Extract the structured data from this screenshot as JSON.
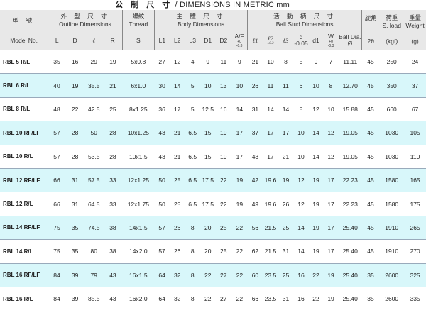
{
  "title": {
    "zh": "公 制 尺 寸",
    "en": "/ DIMENSIONS IN METRIC mm"
  },
  "header": {
    "model_zh": "型 號",
    "model_en": "Model No.",
    "outline_zh": "外 型 尺 寸",
    "outline_en": "Outline Dimensions",
    "thread_zh": "螺紋",
    "thread_en": "Thread",
    "body_zh": "主 體 尺 寸",
    "body_en": "Body Dimensions",
    "stud_zh": "活 動 柄 尺 寸",
    "stud_en": "Ball Stud Dimensions",
    "angle_zh": "旋角",
    "load_zh": "荷重",
    "load_en": "S. load",
    "weight_zh": "重量",
    "weight_en": "Weight",
    "cols": [
      "L",
      "D",
      "ℓ",
      "R",
      "S",
      "L1",
      "L2",
      "L3",
      "D1",
      "D2",
      "A/F",
      "ℓ1",
      "ℓ2",
      "ℓ3",
      "d",
      "d1",
      "W",
      "Ball Dia.",
      "2θ",
      "(kgf)",
      "(g)"
    ],
    "af_tol": [
      "+0",
      "-0.3"
    ],
    "l2_tol": "±0.3",
    "d_tol": "-0.05",
    "w_tol": [
      "+0",
      "-0.3"
    ],
    "ball_sym": "Ø"
  },
  "rows": [
    [
      "RBL 5 R/L",
      "35",
      "16",
      "29",
      "19",
      "5x0.8",
      "27",
      "12",
      "4",
      "9",
      "11",
      "9",
      "21",
      "10",
      "8",
      "5",
      "9",
      "7",
      "11.11",
      "45",
      "250",
      "24"
    ],
    [
      "RBL 6 R/L",
      "40",
      "19",
      "35.5",
      "21",
      "6x1.0",
      "30",
      "14",
      "5",
      "10",
      "13",
      "10",
      "26",
      "11",
      "11",
      "6",
      "10",
      "8",
      "12.70",
      "45",
      "350",
      "37"
    ],
    [
      "RBL 8 R/L",
      "48",
      "22",
      "42.5",
      "25",
      "8x1.25",
      "36",
      "17",
      "5",
      "12.5",
      "16",
      "14",
      "31",
      "14",
      "14",
      "8",
      "12",
      "10",
      "15.88",
      "45",
      "660",
      "67"
    ],
    [
      "RBL 10 RF/LF",
      "57",
      "28",
      "50",
      "28",
      "10x1.25",
      "43",
      "21",
      "6.5",
      "15",
      "19",
      "17",
      "37",
      "17",
      "17",
      "10",
      "14",
      "12",
      "19.05",
      "45",
      "1030",
      "105"
    ],
    [
      "RBL 10 R/L",
      "57",
      "28",
      "53.5",
      "28",
      "10x1.5",
      "43",
      "21",
      "6.5",
      "15",
      "19",
      "17",
      "43",
      "17",
      "21",
      "10",
      "14",
      "12",
      "19.05",
      "45",
      "1030",
      "110"
    ],
    [
      "RBL 12 RF/LF",
      "66",
      "31",
      "57.5",
      "33",
      "12x1.25",
      "50",
      "25",
      "6.5",
      "17.5",
      "22",
      "19",
      "42",
      "19.6",
      "19",
      "12",
      "19",
      "17",
      "22.23",
      "45",
      "1580",
      "165"
    ],
    [
      "RBL 12 R/L",
      "66",
      "31",
      "64.5",
      "33",
      "12x1.75",
      "50",
      "25",
      "6.5",
      "17.5",
      "22",
      "19",
      "49",
      "19.6",
      "26",
      "12",
      "19",
      "17",
      "22.23",
      "45",
      "1580",
      "175"
    ],
    [
      "RBL 14 RF/LF",
      "75",
      "35",
      "74.5",
      "38",
      "14x1.5",
      "57",
      "26",
      "8",
      "20",
      "25",
      "22",
      "56",
      "21.5",
      "25",
      "14",
      "19",
      "17",
      "25.40",
      "45",
      "1910",
      "265"
    ],
    [
      "RBL 14 R/L",
      "75",
      "35",
      "80",
      "38",
      "14x2.0",
      "57",
      "26",
      "8",
      "20",
      "25",
      "22",
      "62",
      "21.5",
      "31",
      "14",
      "19",
      "17",
      "25.40",
      "45",
      "1910",
      "270"
    ],
    [
      "RBL 16 RF/LF",
      "84",
      "39",
      "79",
      "43",
      "16x1.5",
      "64",
      "32",
      "8",
      "22",
      "27",
      "22",
      "60",
      "23.5",
      "25",
      "16",
      "22",
      "19",
      "25.40",
      "35",
      "2600",
      "325"
    ],
    [
      "RBL 16 R/L",
      "84",
      "39",
      "85.5",
      "43",
      "16x2.0",
      "64",
      "32",
      "8",
      "22",
      "27",
      "22",
      "66",
      "23.5",
      "31",
      "16",
      "22",
      "19",
      "25.40",
      "35",
      "2600",
      "335"
    ]
  ],
  "colors": {
    "header_bg": "#e8e8e8",
    "alt_row": "#d8f7fa"
  }
}
